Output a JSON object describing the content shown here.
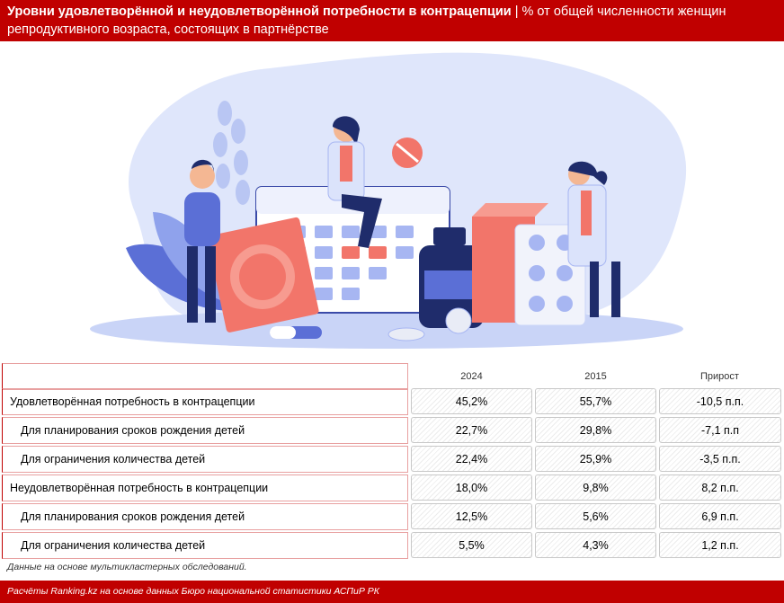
{
  "header": {
    "title_bold": "Уровни удовлетворённой и неудовлетворённой потребности в контрацепции",
    "title_rest": " | % от общей численности женщин репродуктивного возраста, состоящих в партнёрстве"
  },
  "table": {
    "columns": [
      "2024",
      "2015",
      "Прирост"
    ],
    "rows": [
      {
        "label": "Удовлетворённая потребность в контрацепции",
        "values": [
          "45,2%",
          "55,7%",
          "-10,5 п.п."
        ]
      },
      {
        "label": "Для планирования сроков рождения детей",
        "values": [
          "22,7%",
          "29,8%",
          "-7,1 п.п"
        ]
      },
      {
        "label": "Для ограничения количества детей",
        "values": [
          "22,4%",
          "25,9%",
          "-3,5 п.п."
        ]
      },
      {
        "label": "Неудовлетворённая потребность в контрацепции",
        "values": [
          "18,0%",
          "9,8%",
          "8,2 п.п."
        ]
      },
      {
        "label": "Для планирования сроков рождения детей",
        "values": [
          "12,5%",
          "5,6%",
          "6,9 п.п."
        ]
      },
      {
        "label": "Для ограничения количества детей",
        "values": [
          "5,5%",
          "4,3%",
          "1,2 п.п."
        ]
      }
    ]
  },
  "note": "Данные на основе мультикластерных обследований.",
  "footer": "Расчёты Ranking.kz на основе данных Бюро национальной статистики АСПиР РК",
  "colors": {
    "brand": "#c00000",
    "accent_light": "#dde4fb",
    "pill_coral": "#f2756a",
    "navy": "#1f2c6b"
  }
}
